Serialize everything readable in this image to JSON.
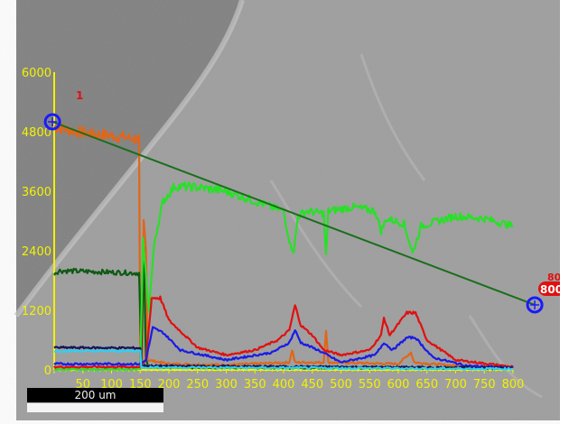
{
  "chart_data": {
    "type": "line",
    "title": "",
    "xlabel": "",
    "ylabel": "",
    "xlim": [
      0,
      800
    ],
    "ylim": [
      0,
      6000
    ],
    "x_ticks": [
      "50",
      "100",
      "150",
      "200",
      "250",
      "300",
      "350",
      "400",
      "450",
      "500",
      "550",
      "600",
      "650",
      "700",
      "750",
      "800"
    ],
    "y_ticks": [
      "0",
      "1200",
      "2400",
      "3600",
      "4800",
      "6000"
    ],
    "series": [
      {
        "name": "orange",
        "color": "#e0661a",
        "points": [
          [
            0,
            4900
          ],
          [
            20,
            4850
          ],
          [
            50,
            4780
          ],
          [
            100,
            4720
          ],
          [
            148,
            4650
          ],
          [
            150,
            0
          ],
          [
            153,
            100
          ],
          [
            156,
            3000
          ],
          [
            160,
            2500
          ],
          [
            163,
            200
          ],
          [
            200,
            120
          ],
          [
            300,
            100
          ],
          [
            410,
            150
          ],
          [
            415,
            400
          ],
          [
            420,
            150
          ],
          [
            470,
            150
          ],
          [
            474,
            800
          ],
          [
            478,
            150
          ],
          [
            600,
            120
          ],
          [
            622,
            350
          ],
          [
            628,
            150
          ],
          [
            700,
            80
          ],
          [
            800,
            60
          ]
        ]
      },
      {
        "name": "dark-green",
        "color": "#0e5a14",
        "points": [
          [
            0,
            1950
          ],
          [
            10,
            2000
          ],
          [
            148,
            1950
          ],
          [
            152,
            200
          ],
          [
            156,
            2500
          ],
          [
            160,
            200
          ],
          [
            165,
            50
          ],
          [
            800,
            30
          ]
        ]
      },
      {
        "name": "green",
        "color": "#28e028",
        "points": [
          [
            0,
            0
          ],
          [
            145,
            0
          ],
          [
            150,
            50
          ],
          [
            155,
            2600
          ],
          [
            165,
            1200
          ],
          [
            175,
            2600
          ],
          [
            190,
            3400
          ],
          [
            210,
            3700
          ],
          [
            250,
            3680
          ],
          [
            300,
            3600
          ],
          [
            350,
            3400
          ],
          [
            400,
            3200
          ],
          [
            412,
            2500
          ],
          [
            418,
            2400
          ],
          [
            425,
            3100
          ],
          [
            440,
            3200
          ],
          [
            470,
            3150
          ],
          [
            474,
            2300
          ],
          [
            478,
            3200
          ],
          [
            520,
            3280
          ],
          [
            560,
            3200
          ],
          [
            570,
            2800
          ],
          [
            580,
            3050
          ],
          [
            610,
            2950
          ],
          [
            625,
            2350
          ],
          [
            640,
            2900
          ],
          [
            700,
            3100
          ],
          [
            750,
            3050
          ],
          [
            800,
            2900
          ]
        ]
      },
      {
        "name": "red",
        "color": "#e01010",
        "points": [
          [
            0,
            60
          ],
          [
            150,
            60
          ],
          [
            160,
            200
          ],
          [
            170,
            1450
          ],
          [
            185,
            1450
          ],
          [
            200,
            1000
          ],
          [
            250,
            450
          ],
          [
            300,
            300
          ],
          [
            350,
            400
          ],
          [
            390,
            600
          ],
          [
            410,
            800
          ],
          [
            420,
            1300
          ],
          [
            430,
            900
          ],
          [
            450,
            700
          ],
          [
            470,
            400
          ],
          [
            500,
            300
          ],
          [
            550,
            400
          ],
          [
            570,
            700
          ],
          [
            575,
            1050
          ],
          [
            585,
            700
          ],
          [
            605,
            1000
          ],
          [
            615,
            1150
          ],
          [
            630,
            1150
          ],
          [
            650,
            600
          ],
          [
            700,
            200
          ],
          [
            800,
            60
          ]
        ]
      },
      {
        "name": "blue",
        "color": "#1a1ae8",
        "points": [
          [
            0,
            120
          ],
          [
            150,
            120
          ],
          [
            160,
            200
          ],
          [
            172,
            850
          ],
          [
            190,
            750
          ],
          [
            220,
            400
          ],
          [
            300,
            200
          ],
          [
            380,
            350
          ],
          [
            410,
            550
          ],
          [
            420,
            800
          ],
          [
            430,
            550
          ],
          [
            460,
            400
          ],
          [
            500,
            150
          ],
          [
            560,
            300
          ],
          [
            575,
            550
          ],
          [
            590,
            400
          ],
          [
            615,
            650
          ],
          [
            630,
            650
          ],
          [
            660,
            250
          ],
          [
            720,
            80
          ],
          [
            800,
            40
          ]
        ]
      },
      {
        "name": "navy",
        "color": "#14145a",
        "points": [
          [
            0,
            450
          ],
          [
            150,
            440
          ],
          [
            152,
            100
          ],
          [
            160,
            80
          ],
          [
            800,
            40
          ]
        ]
      },
      {
        "name": "cyan",
        "color": "#30d0f0",
        "points": [
          [
            0,
            380
          ],
          [
            150,
            380
          ],
          [
            152,
            50
          ],
          [
            800,
            20
          ]
        ]
      }
    ],
    "line_marker": {
      "start": [
        -3,
        5000
      ],
      "end": [
        838,
        1310
      ]
    },
    "annotations": [
      "1",
      "80",
      "800"
    ],
    "scale_bar": "200 um"
  }
}
